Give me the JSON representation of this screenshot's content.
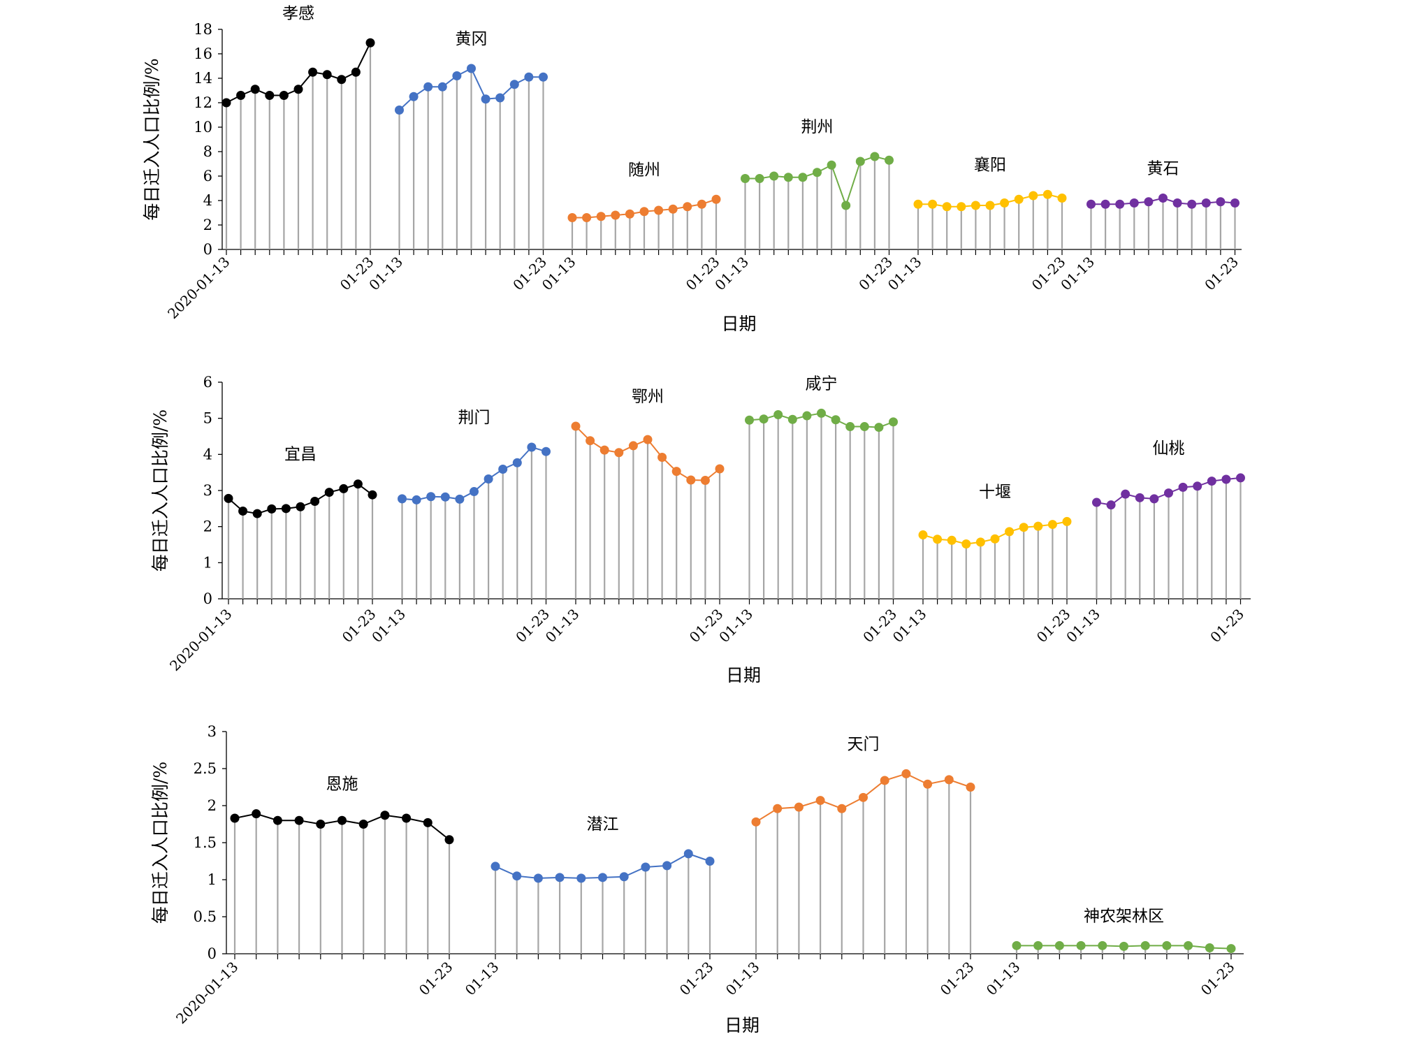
{
  "chart_data": [
    {
      "type": "line",
      "ylabel": "每日迁入人口比例/%",
      "xlabel": "日期",
      "ylim": [
        0,
        18
      ],
      "yticks": [
        "0",
        "2",
        "4",
        "6",
        "8",
        "10",
        "12",
        "14",
        "16",
        "18"
      ],
      "grid": false,
      "x_tick_labels": [
        "2020-01-13",
        "01-23",
        "01-13",
        "01-23",
        "01-13",
        "01-23",
        "01-13",
        "01-23",
        "01-13",
        "01-23",
        "01-13",
        "01-23"
      ],
      "series": [
        {
          "name": "孝感",
          "color": "#000000",
          "values": [
            12.0,
            12.6,
            13.1,
            12.6,
            12.6,
            13.1,
            14.5,
            14.3,
            13.9,
            14.5,
            16.9
          ]
        },
        {
          "name": "黄冈",
          "color": "#4472C4",
          "values": [
            11.4,
            12.5,
            13.3,
            13.3,
            14.2,
            14.8,
            12.3,
            12.4,
            13.5,
            14.1,
            14.1
          ]
        },
        {
          "name": "随州",
          "color": "#ED7D31",
          "values": [
            2.6,
            2.6,
            2.7,
            2.8,
            2.9,
            3.1,
            3.2,
            3.3,
            3.5,
            3.7,
            4.1
          ]
        },
        {
          "name": "荆州",
          "color": "#70AD47",
          "values": [
            5.8,
            5.8,
            6.0,
            5.9,
            5.9,
            6.3,
            6.9,
            3.6,
            7.2,
            7.6,
            7.3
          ]
        },
        {
          "name": "襄阳",
          "color": "#FFC000",
          "values": [
            3.7,
            3.7,
            3.5,
            3.5,
            3.6,
            3.6,
            3.8,
            4.1,
            4.4,
            4.5,
            4.2
          ]
        },
        {
          "name": "黄石",
          "color": "#7030A0",
          "values": [
            3.7,
            3.7,
            3.7,
            3.8,
            3.9,
            4.2,
            3.8,
            3.7,
            3.8,
            3.9,
            3.8
          ]
        }
      ]
    },
    {
      "type": "line",
      "ylabel": "每日迁入人口比例/%",
      "xlabel": "日期",
      "ylim": [
        0,
        6
      ],
      "yticks": [
        "0",
        "1",
        "2",
        "3",
        "4",
        "5",
        "6"
      ],
      "grid": false,
      "x_tick_labels": [
        "2020-01-13",
        "01-23",
        "01-13",
        "01-23",
        "01-13",
        "01-23",
        "01-13",
        "01-23",
        "01-13",
        "01-23",
        "01-13",
        "01-23"
      ],
      "series": [
        {
          "name": "宜昌",
          "color": "#000000",
          "values": [
            2.78,
            2.43,
            2.36,
            2.49,
            2.5,
            2.55,
            2.7,
            2.95,
            3.05,
            3.18,
            2.88
          ]
        },
        {
          "name": "荆门",
          "color": "#4472C4",
          "values": [
            2.77,
            2.74,
            2.83,
            2.82,
            2.76,
            2.97,
            3.32,
            3.59,
            3.77,
            4.2,
            4.08
          ]
        },
        {
          "name": "鄂州",
          "color": "#ED7D31",
          "values": [
            4.78,
            4.38,
            4.12,
            4.05,
            4.24,
            4.41,
            3.92,
            3.53,
            3.29,
            3.28,
            3.6
          ]
        },
        {
          "name": "咸宁",
          "color": "#70AD47",
          "values": [
            4.95,
            4.98,
            5.1,
            4.97,
            5.07,
            5.14,
            4.96,
            4.77,
            4.77,
            4.75,
            4.9
          ]
        },
        {
          "name": "十堰",
          "color": "#FFC000",
          "values": [
            1.77,
            1.65,
            1.62,
            1.52,
            1.57,
            1.66,
            1.86,
            1.98,
            2.01,
            2.06,
            2.14
          ]
        },
        {
          "name": "仙桃",
          "color": "#7030A0",
          "values": [
            2.67,
            2.6,
            2.9,
            2.8,
            2.77,
            2.93,
            3.09,
            3.12,
            3.26,
            3.31,
            3.35
          ]
        }
      ]
    },
    {
      "type": "line",
      "ylabel": "每日迁入人口比例/%",
      "xlabel": "日期",
      "ylim": [
        0,
        3
      ],
      "yticks": [
        "0",
        "0.5",
        "1",
        "1.5",
        "2",
        "2.5",
        "3"
      ],
      "grid": false,
      "x_tick_labels": [
        "2020-01-13",
        "01-23",
        "01-13",
        "01-23",
        "01-13",
        "01-23",
        "01-13",
        "01-23"
      ],
      "series": [
        {
          "name": "恩施",
          "color": "#000000",
          "values": [
            1.83,
            1.89,
            1.8,
            1.8,
            1.75,
            1.8,
            1.75,
            1.87,
            1.83,
            1.77,
            1.54
          ]
        },
        {
          "name": "潜江",
          "color": "#4472C4",
          "values": [
            1.18,
            1.05,
            1.02,
            1.03,
            1.02,
            1.03,
            1.04,
            1.17,
            1.19,
            1.35,
            1.25
          ]
        },
        {
          "name": "天门",
          "color": "#ED7D31",
          "values": [
            1.78,
            1.96,
            1.98,
            2.07,
            1.96,
            2.11,
            2.34,
            2.43,
            2.29,
            2.35,
            2.25
          ]
        },
        {
          "name": "神农架林区",
          "color": "#70AD47",
          "values": [
            0.11,
            0.11,
            0.11,
            0.11,
            0.11,
            0.1,
            0.11,
            0.11,
            0.11,
            0.08,
            0.07
          ]
        }
      ]
    }
  ]
}
